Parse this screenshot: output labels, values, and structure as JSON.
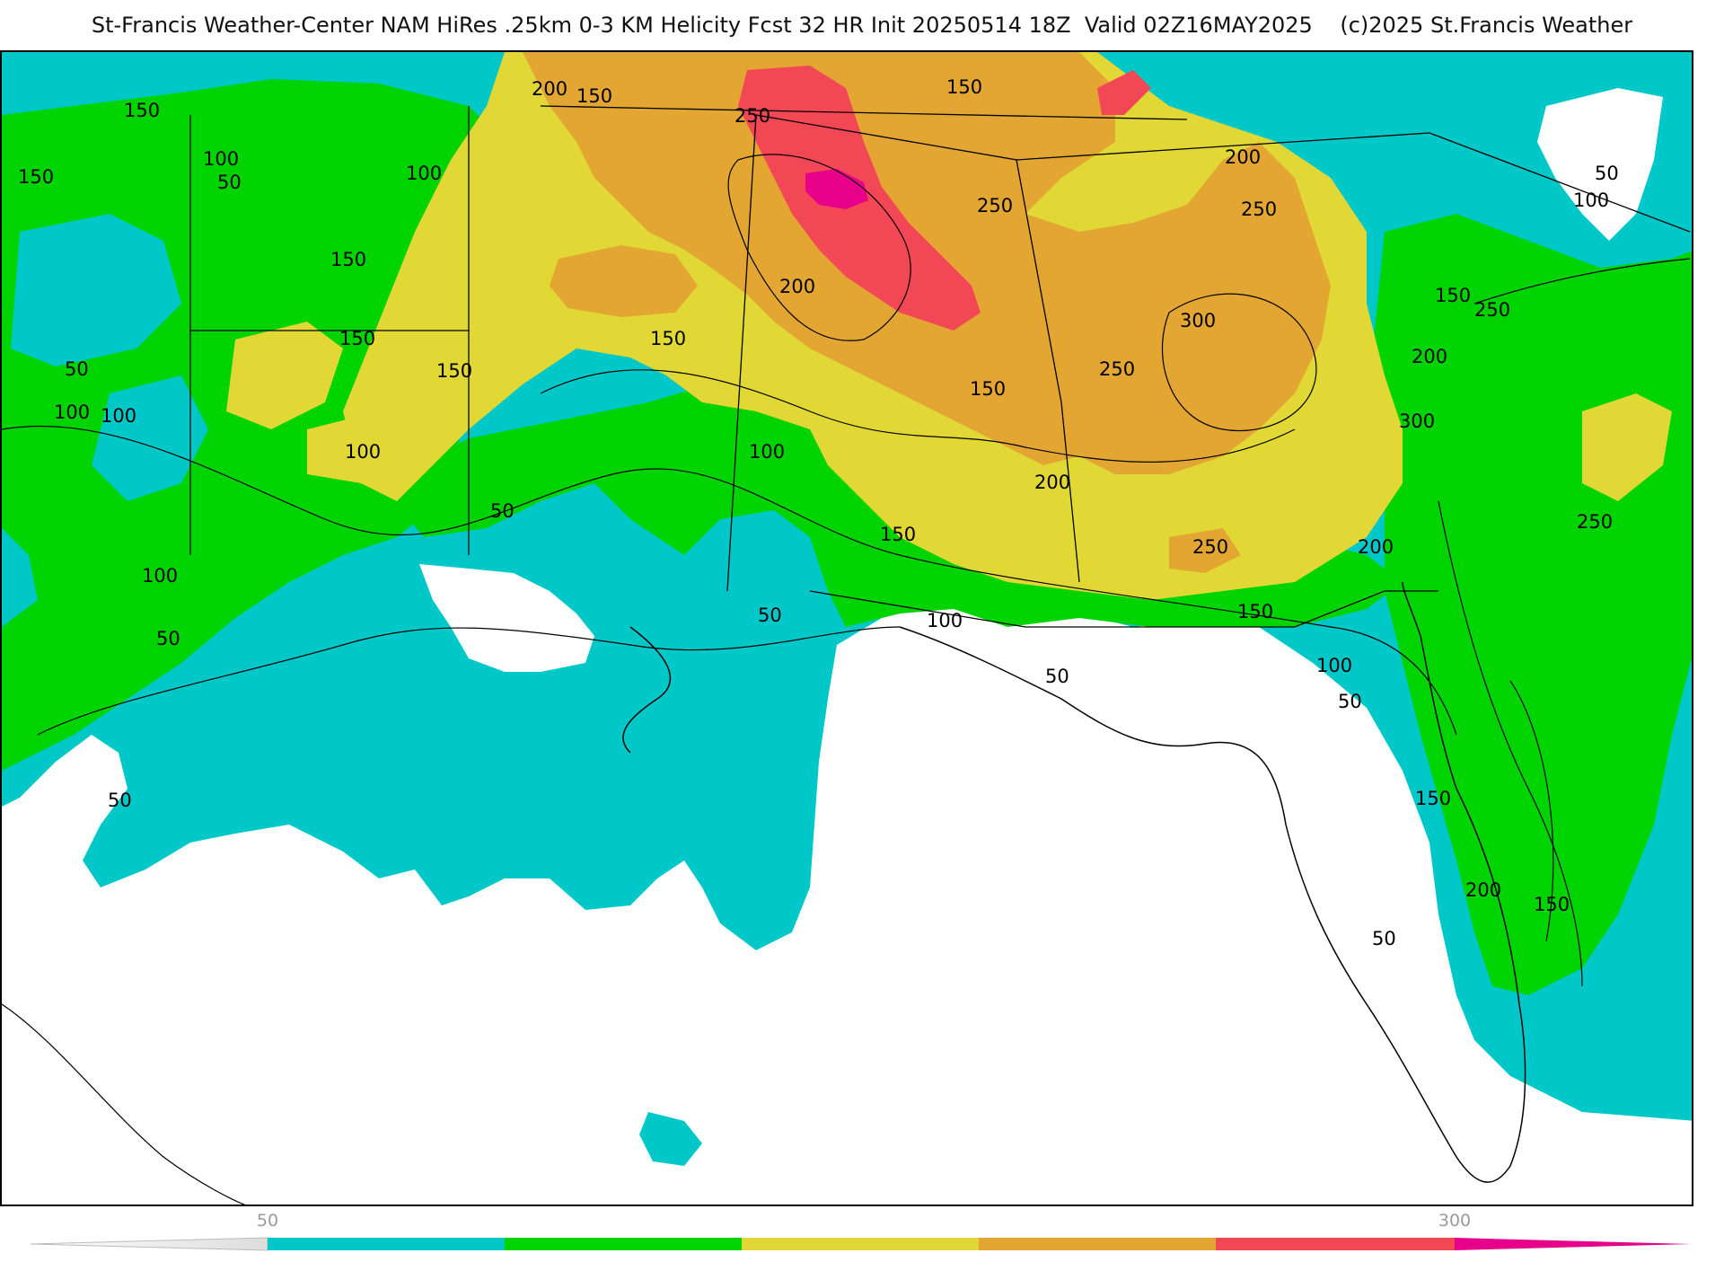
{
  "header": {
    "title": "St-Francis Weather-Center NAM HiRes .25km 0-3 KM Helicity Fcst 32 HR Init 20250514 18Z  Valid 02Z16MAY2025    (c)2025 St.Francis Weather"
  },
  "colors": {
    "cyan": "#00c8c8",
    "green": "#00d400",
    "yellow": "#e2d835",
    "orange": "#e3a632",
    "red": "#f24855",
    "magenta": "#e6008a",
    "background": "#ffffff",
    "contour": "#000000"
  },
  "legend": {
    "tick_50": "50",
    "tick_300": "300"
  },
  "contour_labels": {
    "l1": "200",
    "l2": "150",
    "l3": "150",
    "l4": "250",
    "l5": "150",
    "l6": "150",
    "l7": "100",
    "l8": "50",
    "l9": "100",
    "l10": "150",
    "l11": "150",
    "l12": "150",
    "l13": "200",
    "l14": "250",
    "l15": "150",
    "l16": "200",
    "l17": "250",
    "l18": "300",
    "l19": "250",
    "l20": "100",
    "l21": "50",
    "l22": "100",
    "l23": "100",
    "l24": "150",
    "l25": "200",
    "l26": "150",
    "l27": "250",
    "l28": "100",
    "l29": "200",
    "l30": "50",
    "l31": "50",
    "l32": "150",
    "l33": "250",
    "l34": "100",
    "l35": "100",
    "l36": "200",
    "l37": "300",
    "l38": "250",
    "l39": "150",
    "l40": "50",
    "l41": "50",
    "l42": "150",
    "l43": "200",
    "l44": "150",
    "l45": "50",
    "l46": "50",
    "l47": "100",
    "l48": "100",
    "l49": "50",
    "l50": "50"
  }
}
